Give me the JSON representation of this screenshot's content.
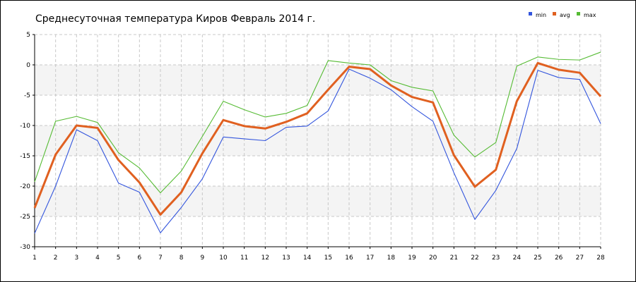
{
  "chart_data": {
    "type": "line",
    "title": "Среднесуточная температура Киров  Февраль 2014 г.",
    "xlabel": "",
    "ylabel": "",
    "x": [
      1,
      2,
      3,
      4,
      5,
      6,
      7,
      8,
      9,
      10,
      11,
      12,
      13,
      14,
      15,
      16,
      17,
      18,
      19,
      20,
      21,
      22,
      23,
      24,
      25,
      26,
      27,
      28
    ],
    "xlim": [
      1,
      28
    ],
    "ylim": [
      -30,
      5
    ],
    "yticks": [
      5,
      0,
      -5,
      -10,
      -15,
      -20,
      -25,
      -30
    ],
    "grid": true,
    "banded_background": true,
    "legend_position": "top-right",
    "series": [
      {
        "name": "min",
        "color": "#3355dd",
        "values": [
          -27.8,
          -20.0,
          -10.7,
          -12.5,
          -19.5,
          -21.0,
          -27.7,
          -23.5,
          -18.8,
          -11.9,
          -12.2,
          -12.5,
          -10.3,
          -10.1,
          -7.6,
          -0.7,
          -2.2,
          -4.1,
          -6.9,
          -9.3,
          -17.8,
          -25.5,
          -20.7,
          -13.8,
          -0.9,
          -2.1,
          -2.4,
          -9.7
        ]
      },
      {
        "name": "avg",
        "color": "#e06020",
        "values": [
          -23.6,
          -14.8,
          -10.0,
          -10.4,
          -15.7,
          -19.4,
          -24.7,
          -21.0,
          -14.6,
          -9.1,
          -10.1,
          -10.5,
          -9.4,
          -8.0,
          -4.1,
          -0.3,
          -0.7,
          -3.4,
          -5.3,
          -6.2,
          -14.9,
          -20.1,
          -17.3,
          -6.0,
          0.3,
          -0.8,
          -1.3,
          -5.2
        ]
      },
      {
        "name": "max",
        "color": "#55bb33",
        "values": [
          -19.3,
          -9.3,
          -8.5,
          -9.5,
          -14.5,
          -17.0,
          -21.1,
          -17.5,
          -11.8,
          -6.0,
          -7.4,
          -8.6,
          -8.0,
          -6.7,
          0.7,
          0.3,
          0.0,
          -2.6,
          -3.7,
          -4.3,
          -11.6,
          -15.2,
          -12.8,
          -0.2,
          1.3,
          0.9,
          0.8,
          2.1
        ]
      }
    ]
  }
}
